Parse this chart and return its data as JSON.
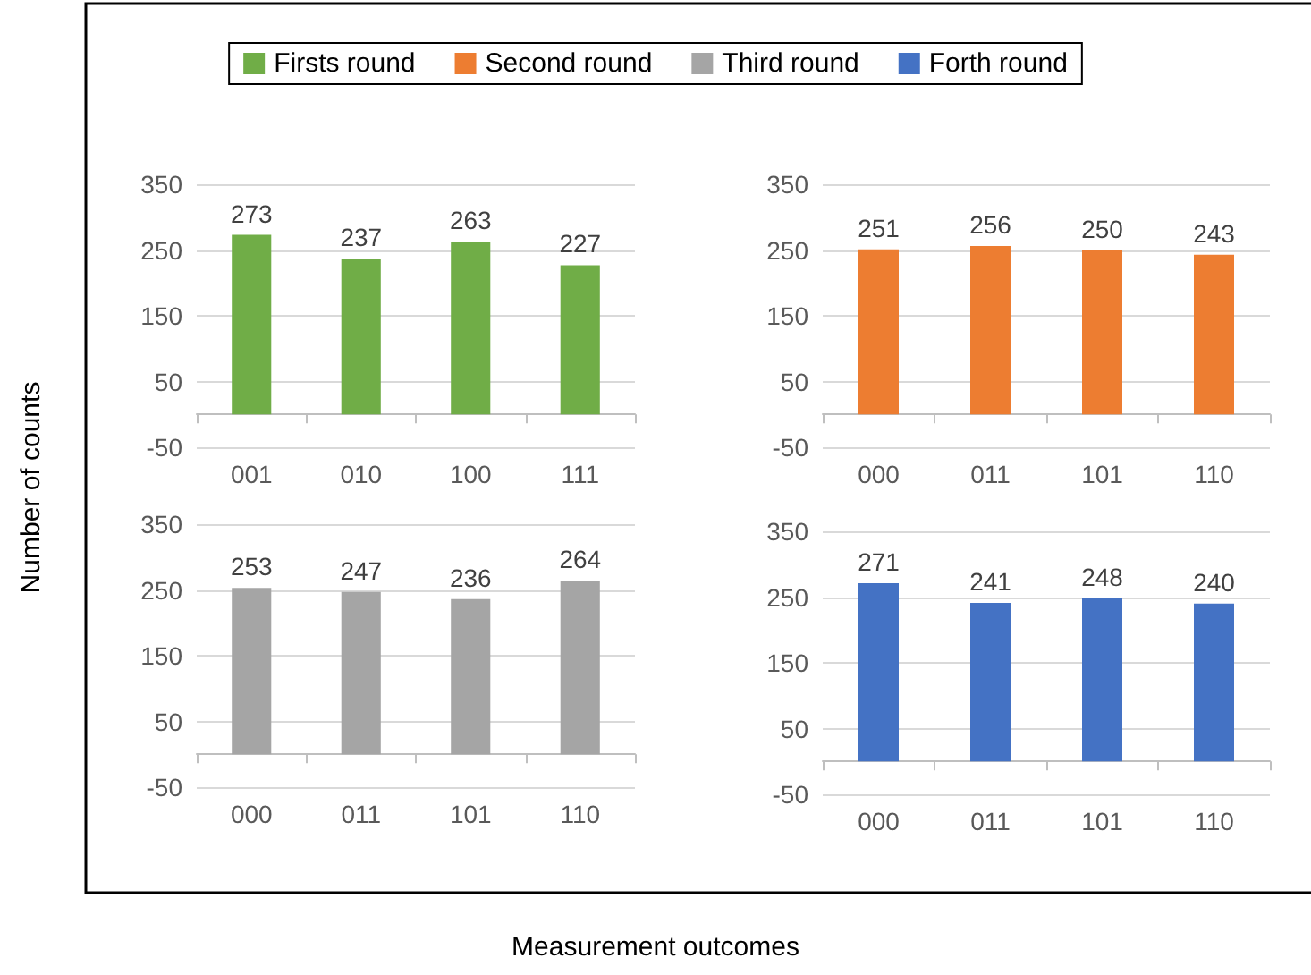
{
  "chart_data": [
    {
      "type": "bar",
      "categories": [
        "001",
        "010",
        "100",
        "111"
      ],
      "series": [
        {
          "name": "Firsts round",
          "color": "#70ad47",
          "values": [
            273,
            237,
            263,
            227
          ]
        }
      ],
      "ylim": [
        -50,
        350
      ],
      "yticks": [
        -50,
        50,
        150,
        250,
        350
      ],
      "grid": "y",
      "data_labels": true,
      "legend": "top",
      "ylabel": "Number of counts",
      "xlabel": "Measurement outcomes"
    },
    {
      "type": "bar",
      "categories": [
        "000",
        "011",
        "101",
        "110"
      ],
      "series": [
        {
          "name": "Second round",
          "color": "#ed7d31",
          "values": [
            251,
            256,
            250,
            243
          ]
        }
      ],
      "ylim": [
        -50,
        350
      ],
      "yticks": [
        -50,
        50,
        150,
        250,
        350
      ],
      "grid": "y",
      "data_labels": true,
      "legend": "top"
    },
    {
      "type": "bar",
      "categories": [
        "000",
        "011",
        "101",
        "110"
      ],
      "series": [
        {
          "name": "Third round",
          "color": "#a5a5a5",
          "values": [
            253,
            247,
            236,
            264
          ]
        }
      ],
      "ylim": [
        -50,
        350
      ],
      "yticks": [
        -50,
        50,
        150,
        250,
        350
      ],
      "grid": "y",
      "data_labels": true,
      "legend": "top"
    },
    {
      "type": "bar",
      "categories": [
        "000",
        "011",
        "101",
        "110"
      ],
      "series": [
        {
          "name": "Forth round",
          "color": "#4472c4",
          "values": [
            271,
            241,
            248,
            240
          ]
        }
      ],
      "ylim": [
        -50,
        350
      ],
      "yticks": [
        -50,
        50,
        150,
        250,
        350
      ],
      "grid": "y",
      "data_labels": true,
      "legend": "top"
    }
  ]
}
